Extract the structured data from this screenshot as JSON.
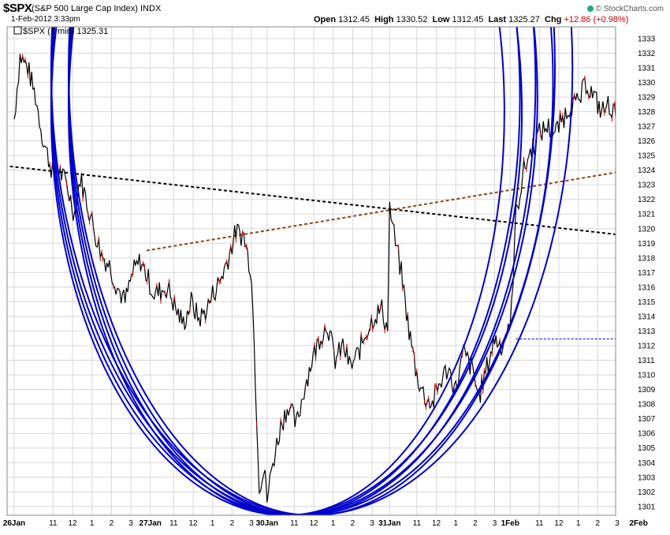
{
  "header": {
    "symbol": "$SPX",
    "name": "(S&P 500 Large Cap Index) INDX",
    "datetime": "1-Feb-2012 3:33pm",
    "credit": "© StockCharts.com",
    "open_label": "Open",
    "open_value": "1312.45",
    "high_label": "High",
    "high_value": "1330.52",
    "low_label": "Low",
    "low_value": "1312.45",
    "last_label": "Last",
    "last_value": "1325.27",
    "chg_label": "Chg",
    "chg_value": "+12.86 (+0.98%)"
  },
  "colors": {
    "price": "#000000",
    "price_down": "#cc0000",
    "arcs": "#0000cc",
    "trend_black": "#000000",
    "trend_brown": "#8b4513",
    "reference_line": "#0000cc",
    "grid": "#d8d8d8"
  },
  "chart_data": {
    "type": "line",
    "title": "$SPX",
    "legend": "$SPX (1 min) 1325.31",
    "legend_position": "top-left",
    "grid": true,
    "ylim": [
      1300.4,
      1333.8
    ],
    "y_ticks": [
      1301,
      1302,
      1303,
      1304,
      1305,
      1306,
      1307,
      1308,
      1309,
      1310,
      1311,
      1312,
      1313,
      1314,
      1315,
      1316,
      1317,
      1318,
      1319,
      1320,
      1321,
      1322,
      1323,
      1324,
      1325,
      1326,
      1327,
      1328,
      1329,
      1330,
      1331,
      1332,
      1333
    ],
    "xlim": [
      0,
      31
    ],
    "x_ticks": [
      {
        "x": 0,
        "label": "26Jan",
        "major": true
      },
      {
        "x": 2,
        "label": "11"
      },
      {
        "x": 3,
        "label": "12"
      },
      {
        "x": 4,
        "label": "1"
      },
      {
        "x": 5,
        "label": "2"
      },
      {
        "x": 6,
        "label": "3"
      },
      {
        "x": 7,
        "label": "27Jan",
        "major": true
      },
      {
        "x": 8.2,
        "label": "11"
      },
      {
        "x": 9.2,
        "label": "12"
      },
      {
        "x": 10.2,
        "label": "1"
      },
      {
        "x": 11.2,
        "label": "2"
      },
      {
        "x": 12.2,
        "label": "3"
      },
      {
        "x": 13,
        "label": "30Jan",
        "major": true
      },
      {
        "x": 14.4,
        "label": "11"
      },
      {
        "x": 15.4,
        "label": "12"
      },
      {
        "x": 16.4,
        "label": "1"
      },
      {
        "x": 17.4,
        "label": "2"
      },
      {
        "x": 18.4,
        "label": "3"
      },
      {
        "x": 19.3,
        "label": "31Jan",
        "major": true
      },
      {
        "x": 20.7,
        "label": "11"
      },
      {
        "x": 21.7,
        "label": "12"
      },
      {
        "x": 22.7,
        "label": "1"
      },
      {
        "x": 23.7,
        "label": "2"
      },
      {
        "x": 24.7,
        "label": "3"
      },
      {
        "x": 25.5,
        "label": "1Feb",
        "major": true
      },
      {
        "x": 27,
        "label": "11"
      },
      {
        "x": 28,
        "label": "12"
      },
      {
        "x": 29,
        "label": "1"
      },
      {
        "x": 30,
        "label": "2"
      },
      {
        "x": 31,
        "label": "3"
      },
      {
        "x": 32.1,
        "label": "2Feb",
        "major": true
      }
    ],
    "series": [
      {
        "x": [
          0,
          0.3,
          0.7,
          1.1,
          1.5,
          1.9,
          2.3,
          2.7,
          3.1,
          3.4,
          3.8,
          4.2,
          4.5,
          4.9,
          5.3,
          5.7,
          6.1,
          6.5,
          6.9,
          7.2,
          7.6,
          7.9,
          8.3,
          8.7,
          9.1,
          9.5,
          9.9,
          10.2,
          10.6,
          11.0,
          11.4,
          11.8,
          12.2,
          12.6,
          12.9,
          13.0,
          13.3,
          13.7,
          14.1,
          14.5,
          14.9,
          15.3,
          15.7,
          16.1,
          16.5,
          16.9,
          17.3,
          17.7,
          18.1,
          18.5,
          18.9,
          19.2,
          19.3,
          19.6,
          19.9,
          20.3,
          20.7,
          21.1,
          21.5,
          21.9,
          22.3,
          22.7,
          23.1,
          23.5,
          23.9,
          24.3,
          24.7,
          25.1,
          25.4,
          25.5,
          25.8,
          26.2,
          26.6,
          27.0,
          27.4,
          27.8,
          28.2,
          28.6,
          29.0,
          29.4,
          29.8,
          30.2,
          30.6,
          31.0,
          31.3
        ],
        "y": [
          1327.5,
          1331.8,
          1331.0,
          1329.0,
          1326.0,
          1324.2,
          1324.0,
          1323.0,
          1321.0,
          1323.5,
          1321.5,
          1319.5,
          1318.2,
          1317.5,
          1316.0,
          1315.0,
          1317.0,
          1317.8,
          1316.5,
          1315.5,
          1315.8,
          1316.0,
          1314.5,
          1313.5,
          1315.0,
          1313.8,
          1314.5,
          1315.5,
          1316.5,
          1318.0,
          1319.8,
          1319.5,
          1317.0,
          1302.5,
          1303.5,
          1301.5,
          1304.0,
          1306.5,
          1308.0,
          1306.5,
          1309.0,
          1311.0,
          1312.5,
          1313.5,
          1311.0,
          1312.0,
          1310.5,
          1311.5,
          1313.0,
          1314.0,
          1314.5,
          1313.0,
          1321.5,
          1319.0,
          1317.0,
          1313.0,
          1310.0,
          1308.5,
          1308.0,
          1309.5,
          1310.5,
          1309.0,
          1311.5,
          1310.5,
          1308.5,
          1310.5,
          1312.5,
          1312.0,
          1313.5,
          1312.8,
          1321.0,
          1324.0,
          1325.5,
          1326.5,
          1327.0,
          1326.5,
          1327.5,
          1328.5,
          1328.5,
          1330.0,
          1329.0,
          1328.0,
          1328.5,
          1327.5,
          1325.8
        ]
      }
    ],
    "annotations": {
      "trendlines": [
        {
          "color": "black",
          "x": [
            -0.5,
            33
          ],
          "y": [
            1324.3,
            1319.3
          ]
        },
        {
          "color": "brown",
          "x": [
            6.8,
            33
          ],
          "y": [
            1318.5,
            1324.3
          ]
        }
      ],
      "reference_line": {
        "x": [
          25.8,
          31.8
        ],
        "y": [
          1312.45,
          1312.45
        ]
      },
      "arcs": [
        {
          "center": [
            14.0,
            1328.0
          ],
          "rx": [
            11.2,
            12.1
          ],
          "ry": [
            27.6,
            27.6
          ]
        },
        {
          "center": [
            14.4,
            1329.0
          ],
          "rx": [
            11.6,
            12.5
          ],
          "ry": [
            28.6,
            28.6
          ]
        },
        {
          "center": [
            14.8,
            1330.0
          ],
          "rx": [
            12.0,
            12.9
          ],
          "ry": [
            29.6,
            29.6
          ]
        },
        {
          "center": [
            15.3,
            1331.0
          ],
          "rx": [
            12.5,
            13.4
          ],
          "ry": [
            30.6,
            30.6
          ]
        }
      ]
    }
  }
}
